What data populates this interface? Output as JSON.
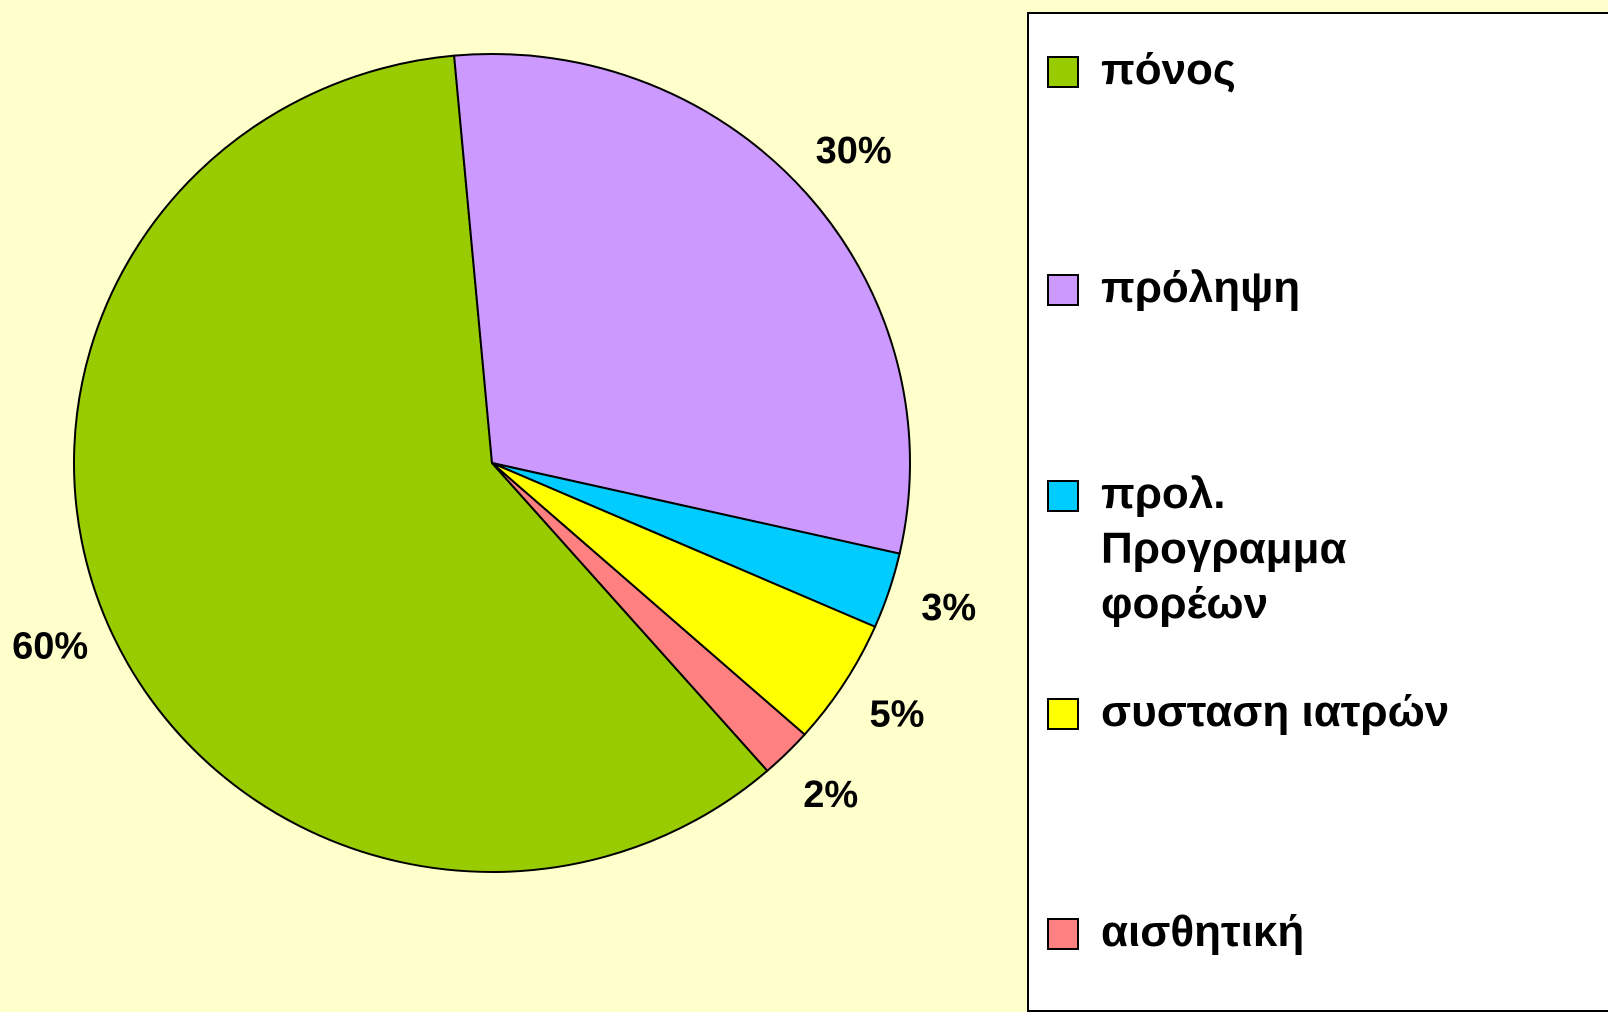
{
  "chart_data": {
    "type": "pie",
    "series": [
      {
        "name": "πόνος",
        "color": "#99cc00",
        "values": [
          60
        ],
        "value_labels": [
          "60%"
        ]
      },
      {
        "name": "πρόληψη",
        "color": "#cc99ff",
        "values": [
          30
        ],
        "value_labels": [
          "30%"
        ]
      },
      {
        "name": "προλ.\nΠρογραμμα\nφορέων",
        "color": "#00ccff",
        "values": [
          3
        ],
        "value_labels": [
          "3%"
        ]
      },
      {
        "name": "συσταση ιατρών",
        "color": "#ffff00",
        "values": [
          5
        ],
        "value_labels": [
          "5%"
        ]
      },
      {
        "name": "αισθητική",
        "color": "#ff8080",
        "values": [
          2
        ],
        "value_labels": [
          "2%"
        ]
      }
    ],
    "legend": "right"
  }
}
